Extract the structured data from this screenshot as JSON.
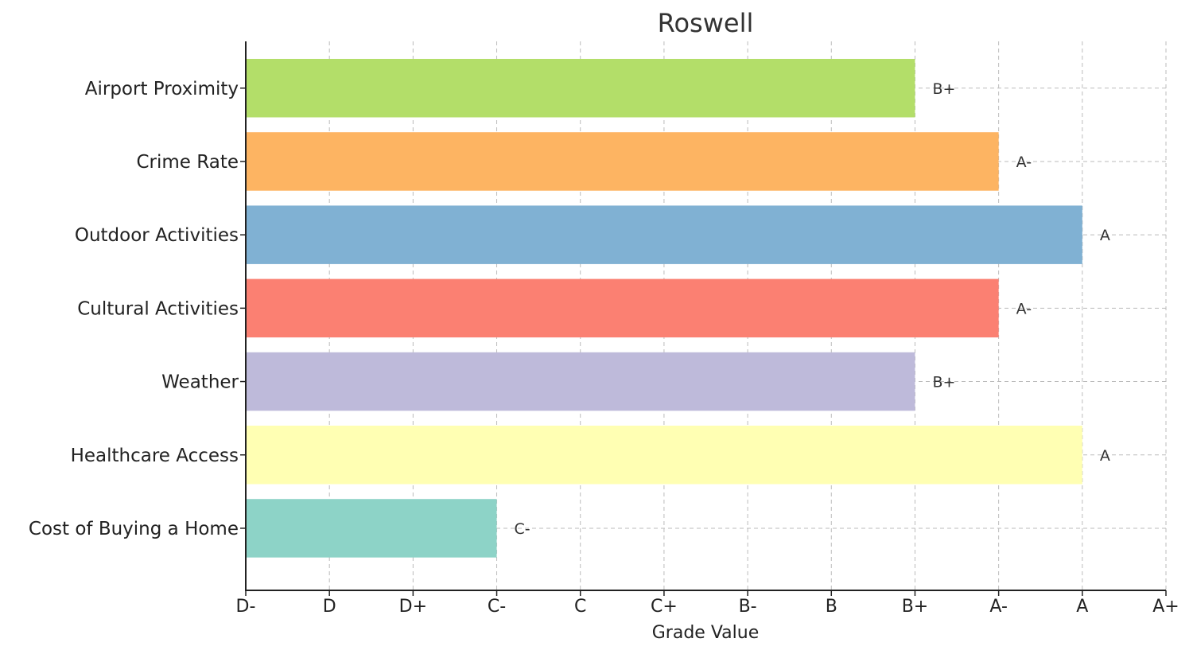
{
  "chart_data": {
    "type": "bar",
    "orientation": "horizontal",
    "title": "Roswell",
    "xlabel": "Grade Value",
    "ylabel": "",
    "x_tick_labels": [
      "D-",
      "D",
      "D+",
      "C-",
      "C",
      "C+",
      "B-",
      "B",
      "B+",
      "A-",
      "A",
      "A+"
    ],
    "xlim": [
      0,
      11
    ],
    "categories": [
      "Airport Proximity",
      "Crime Rate",
      "Outdoor Activities",
      "Cultural Activities",
      "Weather",
      "Healthcare Access",
      "Cost of Buying a Home"
    ],
    "values": [
      8,
      9,
      10,
      9,
      8,
      10,
      3
    ],
    "value_labels": [
      "B+",
      "A-",
      "A",
      "A-",
      "B+",
      "A",
      "C-"
    ],
    "colors": [
      "#b3de69",
      "#fdb462",
      "#80b1d3",
      "#fb8072",
      "#bebada",
      "#ffffb3",
      "#8dd3c7"
    ],
    "grid": true
  }
}
